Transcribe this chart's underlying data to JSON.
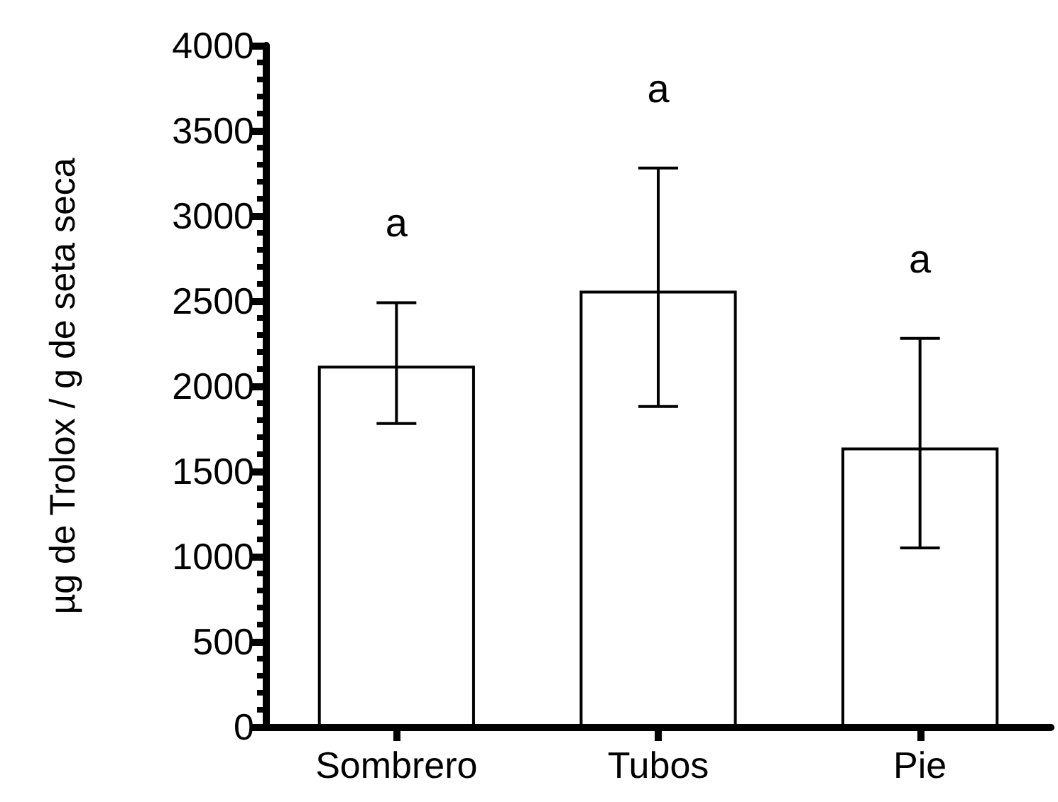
{
  "chart_data": {
    "type": "bar",
    "ylabel": "µg de Trolox / g de seta seca",
    "categories": [
      "Sombrero",
      "Tubos",
      "Pie"
    ],
    "values": [
      2120,
      2560,
      1640
    ],
    "color": "#ffffff",
    "errors": [
      [
        1780,
        2490
      ],
      [
        1880,
        3280
      ],
      [
        1050,
        2280
      ]
    ],
    "ylim": [
      0,
      4000
    ],
    "yticks": [
      0,
      500,
      1000,
      1500,
      2000,
      2500,
      3000,
      3500,
      4000
    ],
    "grid": false,
    "annotations": [
      "a",
      "a",
      "a"
    ]
  }
}
